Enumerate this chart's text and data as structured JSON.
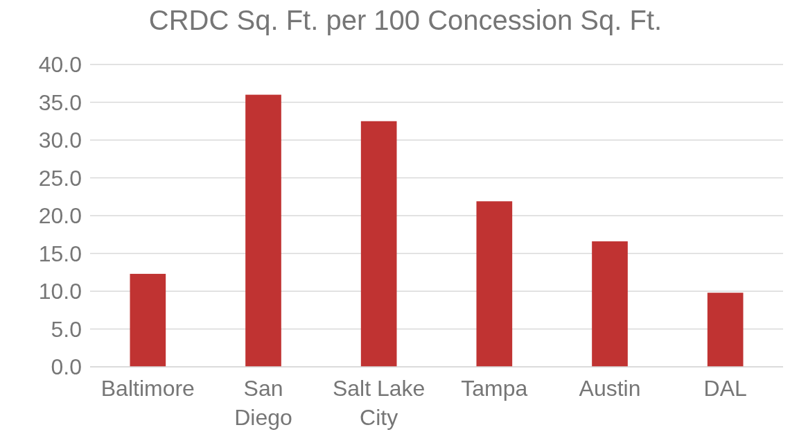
{
  "chart_data": {
    "type": "bar",
    "title": "CRDC Sq. Ft. per 100 Concession Sq. Ft.",
    "categories": [
      "Baltimore",
      "San Diego",
      "Salt Lake City",
      "Tampa",
      "Austin",
      "DAL"
    ],
    "values": [
      12.3,
      36.0,
      32.5,
      21.9,
      16.6,
      9.8
    ],
    "color": "#c03332",
    "ylim": [
      0,
      40
    ],
    "yticks": [
      {
        "value": 0,
        "label": "0.0"
      },
      {
        "value": 5,
        "label": "5.0"
      },
      {
        "value": 10,
        "label": "10.0"
      },
      {
        "value": 15,
        "label": "15.0"
      },
      {
        "value": 20,
        "label": "20.0"
      },
      {
        "value": 25,
        "label": "25.0"
      },
      {
        "value": 30,
        "label": "30.0"
      },
      {
        "value": 35,
        "label": "35.0"
      },
      {
        "value": 40,
        "label": "40.0"
      }
    ],
    "grid": "y"
  }
}
